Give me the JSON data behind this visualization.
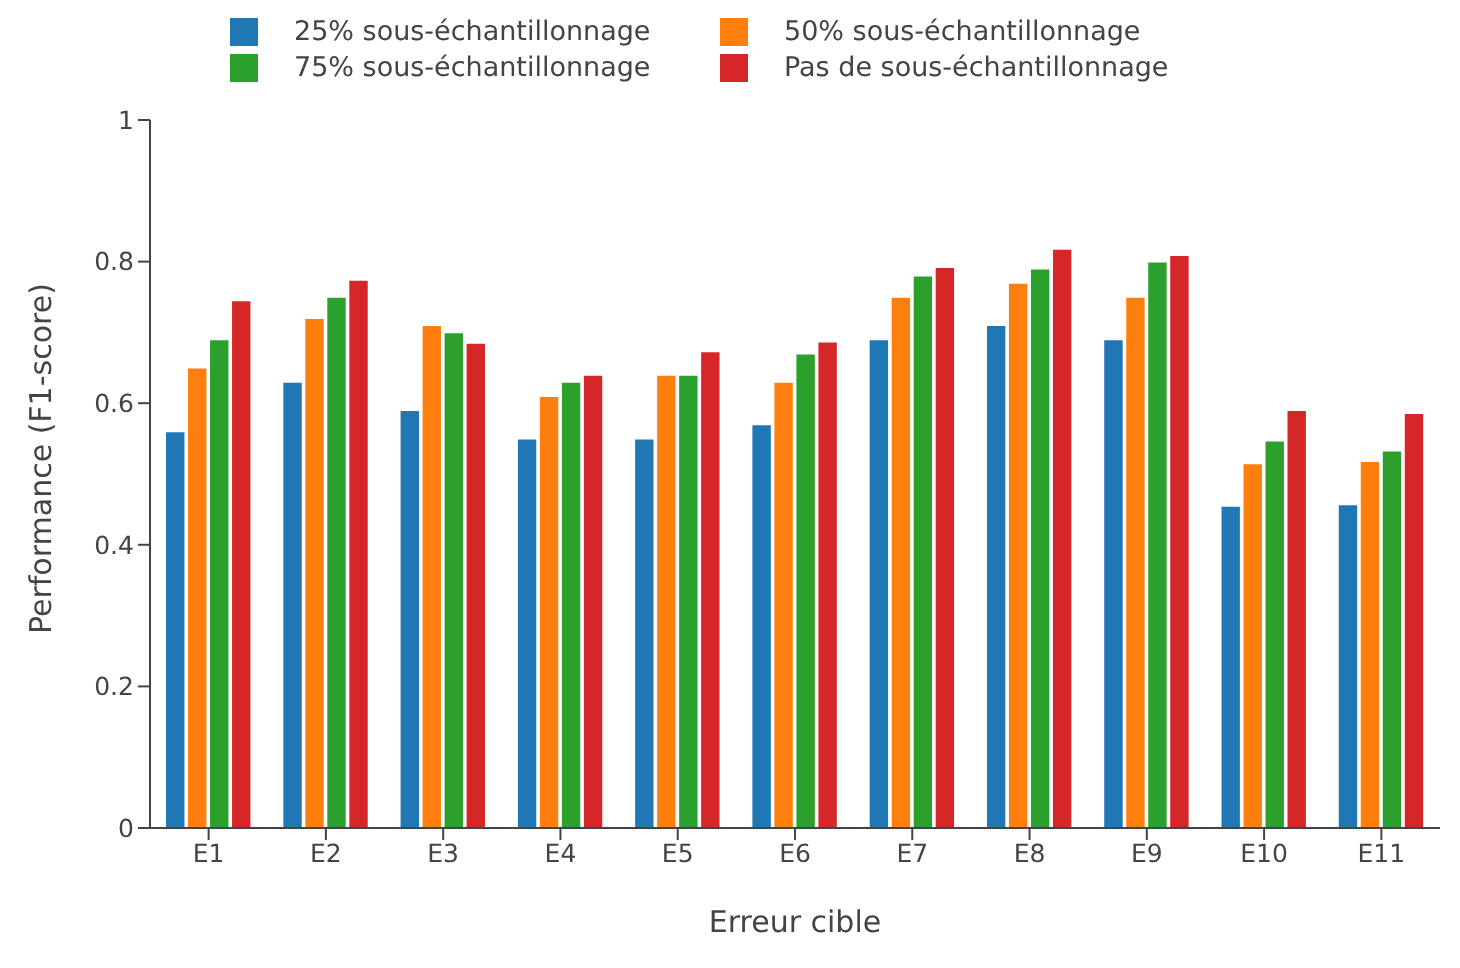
{
  "chart_data": {
    "type": "bar",
    "xlabel": "Erreur cible",
    "ylabel": "Performance (F1-score)",
    "categories": [
      "E1",
      "E2",
      "E3",
      "E4",
      "E5",
      "E6",
      "E7",
      "E8",
      "E9",
      "E10",
      "E11"
    ],
    "series": [
      {
        "name": "25% sous-échantillonnage",
        "color": "#1f77b4",
        "values": [
          0.56,
          0.63,
          0.59,
          0.55,
          0.55,
          0.57,
          0.69,
          0.71,
          0.69,
          0.455,
          0.457
        ]
      },
      {
        "name": "50% sous-échantillonnage",
        "color": "#ff7f0e",
        "values": [
          0.65,
          0.72,
          0.71,
          0.61,
          0.64,
          0.63,
          0.75,
          0.77,
          0.75,
          0.515,
          0.518
        ]
      },
      {
        "name": "75% sous-échantillonnage",
        "color": "#2ca02c",
        "values": [
          0.69,
          0.75,
          0.7,
          0.63,
          0.64,
          0.67,
          0.78,
          0.79,
          0.8,
          0.547,
          0.533
        ]
      },
      {
        "name": "Pas de sous-échantillonnage",
        "color": "#d62728",
        "values": [
          0.745,
          0.774,
          0.685,
          0.64,
          0.673,
          0.687,
          0.792,
          0.818,
          0.809,
          0.59,
          0.586
        ]
      }
    ],
    "ylim": [
      0,
      1
    ],
    "yticks": [
      0,
      0.2,
      0.4,
      0.6,
      0.8,
      1
    ],
    "grid": false,
    "legend": "top left"
  }
}
